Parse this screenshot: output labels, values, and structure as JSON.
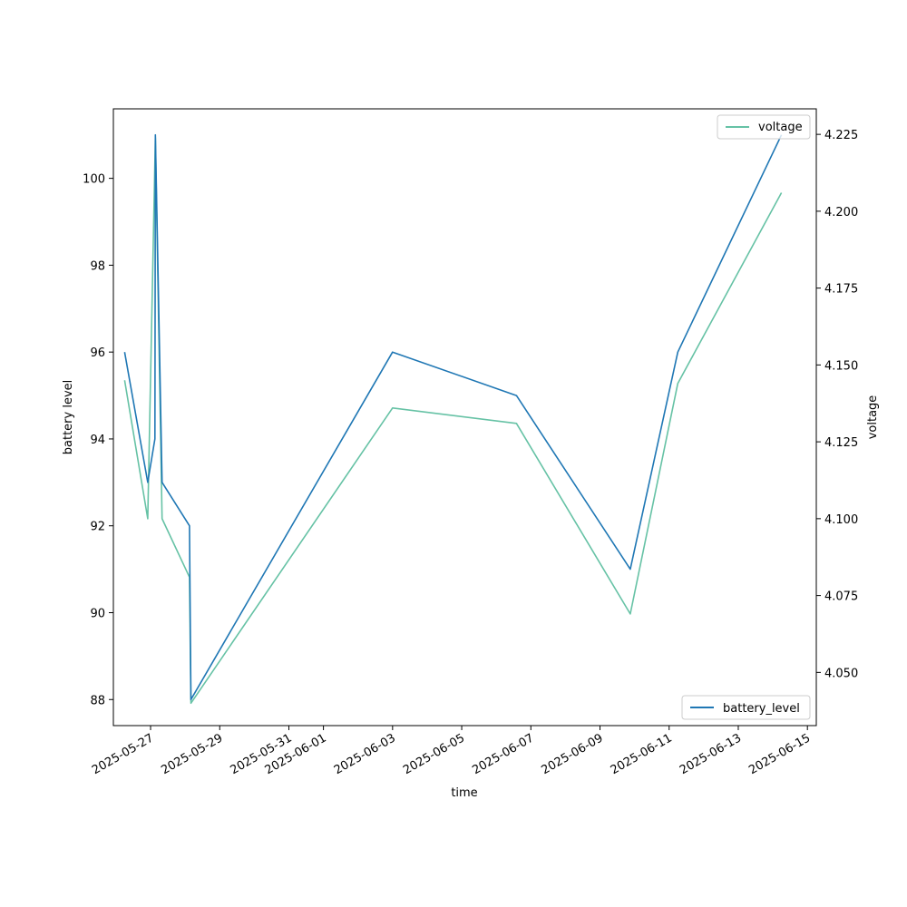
{
  "chart_data": {
    "type": "line",
    "xlabel": "time",
    "ylabel": "battery level",
    "ylabel_right": "voltage",
    "xlim": [
      "2025-05-25T22:10",
      "2025-06-15T06:10"
    ],
    "ylim": [
      87.4,
      101.6
    ],
    "ylim_right": [
      4.0327,
      4.2333
    ],
    "x_ticks": [
      "2025-05-27",
      "2025-05-29",
      "2025-05-31",
      "2025-06-01",
      "2025-06-03",
      "2025-06-05",
      "2025-06-07",
      "2025-06-09",
      "2025-06-11",
      "2025-06-13",
      "2025-06-15"
    ],
    "y_ticks": [
      88,
      90,
      92,
      94,
      96,
      98,
      100
    ],
    "y_ticks_right": [
      "4.050",
      "4.075",
      "4.100",
      "4.125",
      "4.150",
      "4.175",
      "4.200",
      "4.225"
    ],
    "grid": false,
    "series": [
      {
        "name": "battery_level",
        "axis": "left",
        "color": "#1f77b4",
        "legend_position": "lower right",
        "points": [
          {
            "x": "2025-05-26T06:00",
            "y": 96
          },
          {
            "x": "2025-05-26T22:00",
            "y": 93
          },
          {
            "x": "2025-05-27T03:00",
            "y": 94
          },
          {
            "x": "2025-05-27T03:20",
            "y": 101
          },
          {
            "x": "2025-05-27T08:00",
            "y": 93
          },
          {
            "x": "2025-05-28T03:00",
            "y": 92
          },
          {
            "x": "2025-05-28T04:00",
            "y": 88
          },
          {
            "x": "2025-06-03T00:00",
            "y": 96
          },
          {
            "x": "2025-06-06T14:00",
            "y": 95
          },
          {
            "x": "2025-06-09T21:00",
            "y": 91
          },
          {
            "x": "2025-06-11T06:00",
            "y": 96
          },
          {
            "x": "2025-06-14T06:00",
            "y": 101
          }
        ]
      },
      {
        "name": "voltage",
        "axis": "right",
        "color": "#66c2a5",
        "legend_position": "upper right",
        "points": [
          {
            "x": "2025-05-26T06:00",
            "y": 4.145
          },
          {
            "x": "2025-05-26T22:00",
            "y": 4.1
          },
          {
            "x": "2025-05-27T03:20",
            "y": 4.224
          },
          {
            "x": "2025-05-27T08:00",
            "y": 4.1
          },
          {
            "x": "2025-05-28T03:00",
            "y": 4.081
          },
          {
            "x": "2025-05-28T04:00",
            "y": 4.04
          },
          {
            "x": "2025-06-03T00:00",
            "y": 4.136
          },
          {
            "x": "2025-06-06T14:00",
            "y": 4.131
          },
          {
            "x": "2025-06-09T21:00",
            "y": 4.069
          },
          {
            "x": "2025-06-11T06:00",
            "y": 4.144
          },
          {
            "x": "2025-06-14T06:00",
            "y": 4.206
          }
        ]
      }
    ]
  }
}
